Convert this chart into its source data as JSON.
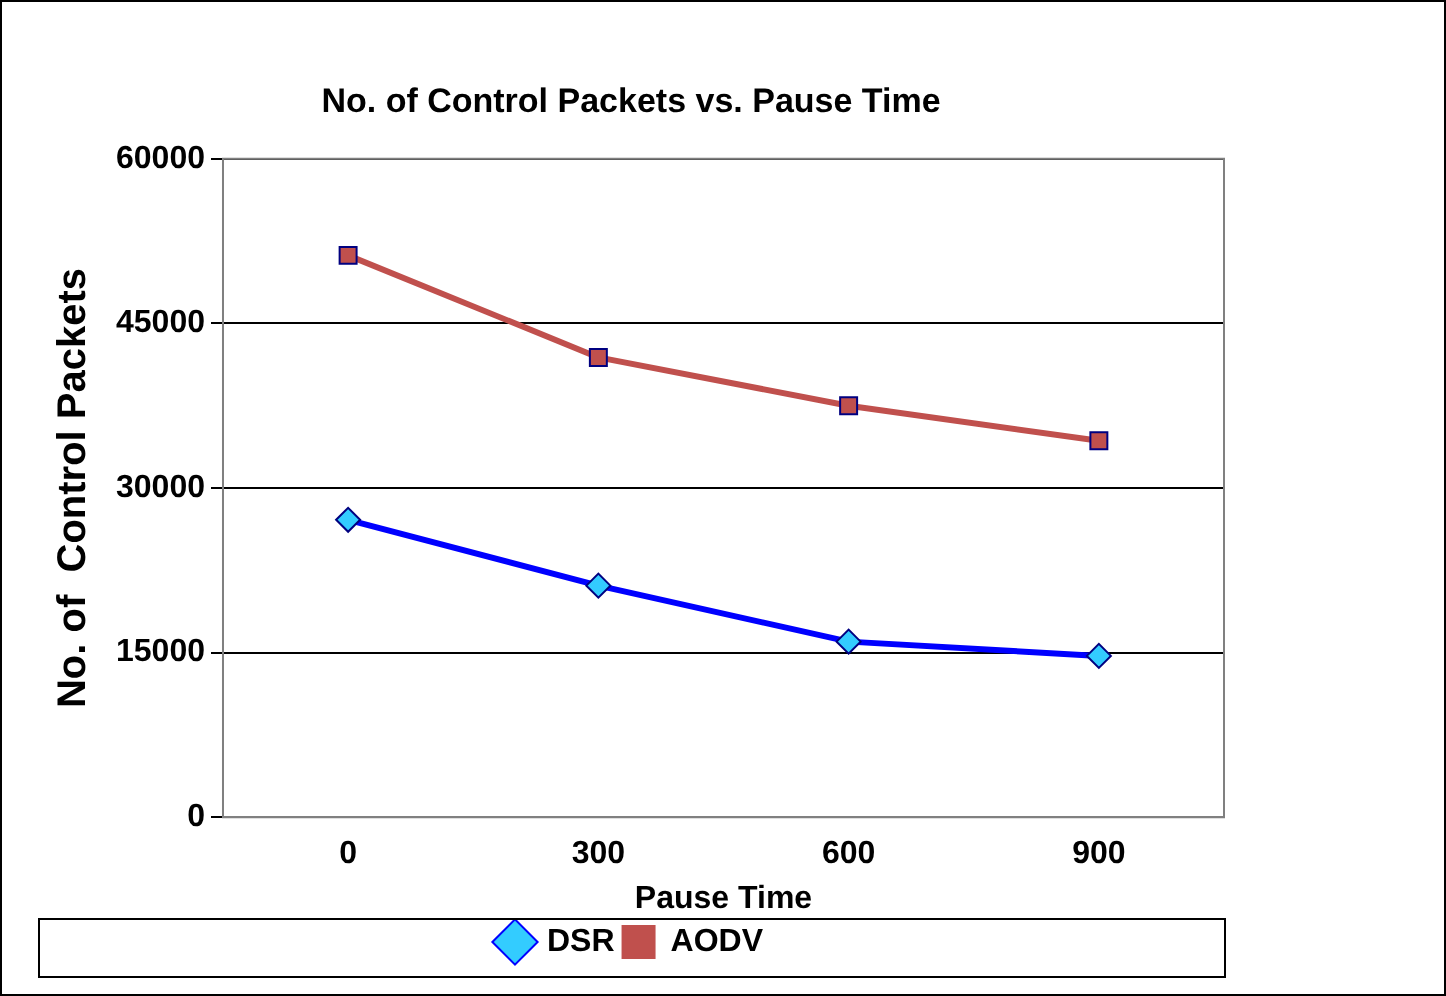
{
  "chart_data": {
    "type": "line",
    "title": "No. of Control Packets vs. Pause Time",
    "xlabel": "Pause Time",
    "ylabel": "No. of  Control Packets",
    "categories": [
      "0",
      "300",
      "600",
      "900"
    ],
    "series": [
      {
        "name": "DSR",
        "color": "#0000ff",
        "marker": "diamond",
        "values": [
          27100,
          21100,
          16000,
          14700
        ]
      },
      {
        "name": "AODV",
        "color": "#c0504d",
        "marker": "square",
        "values": [
          51200,
          41900,
          37500,
          34300
        ]
      }
    ],
    "ylim": [
      0,
      60000
    ],
    "yticks": [
      0,
      15000,
      30000,
      45000,
      60000
    ],
    "grid": "y",
    "legend": "bottom",
    "line_style": "solid"
  }
}
